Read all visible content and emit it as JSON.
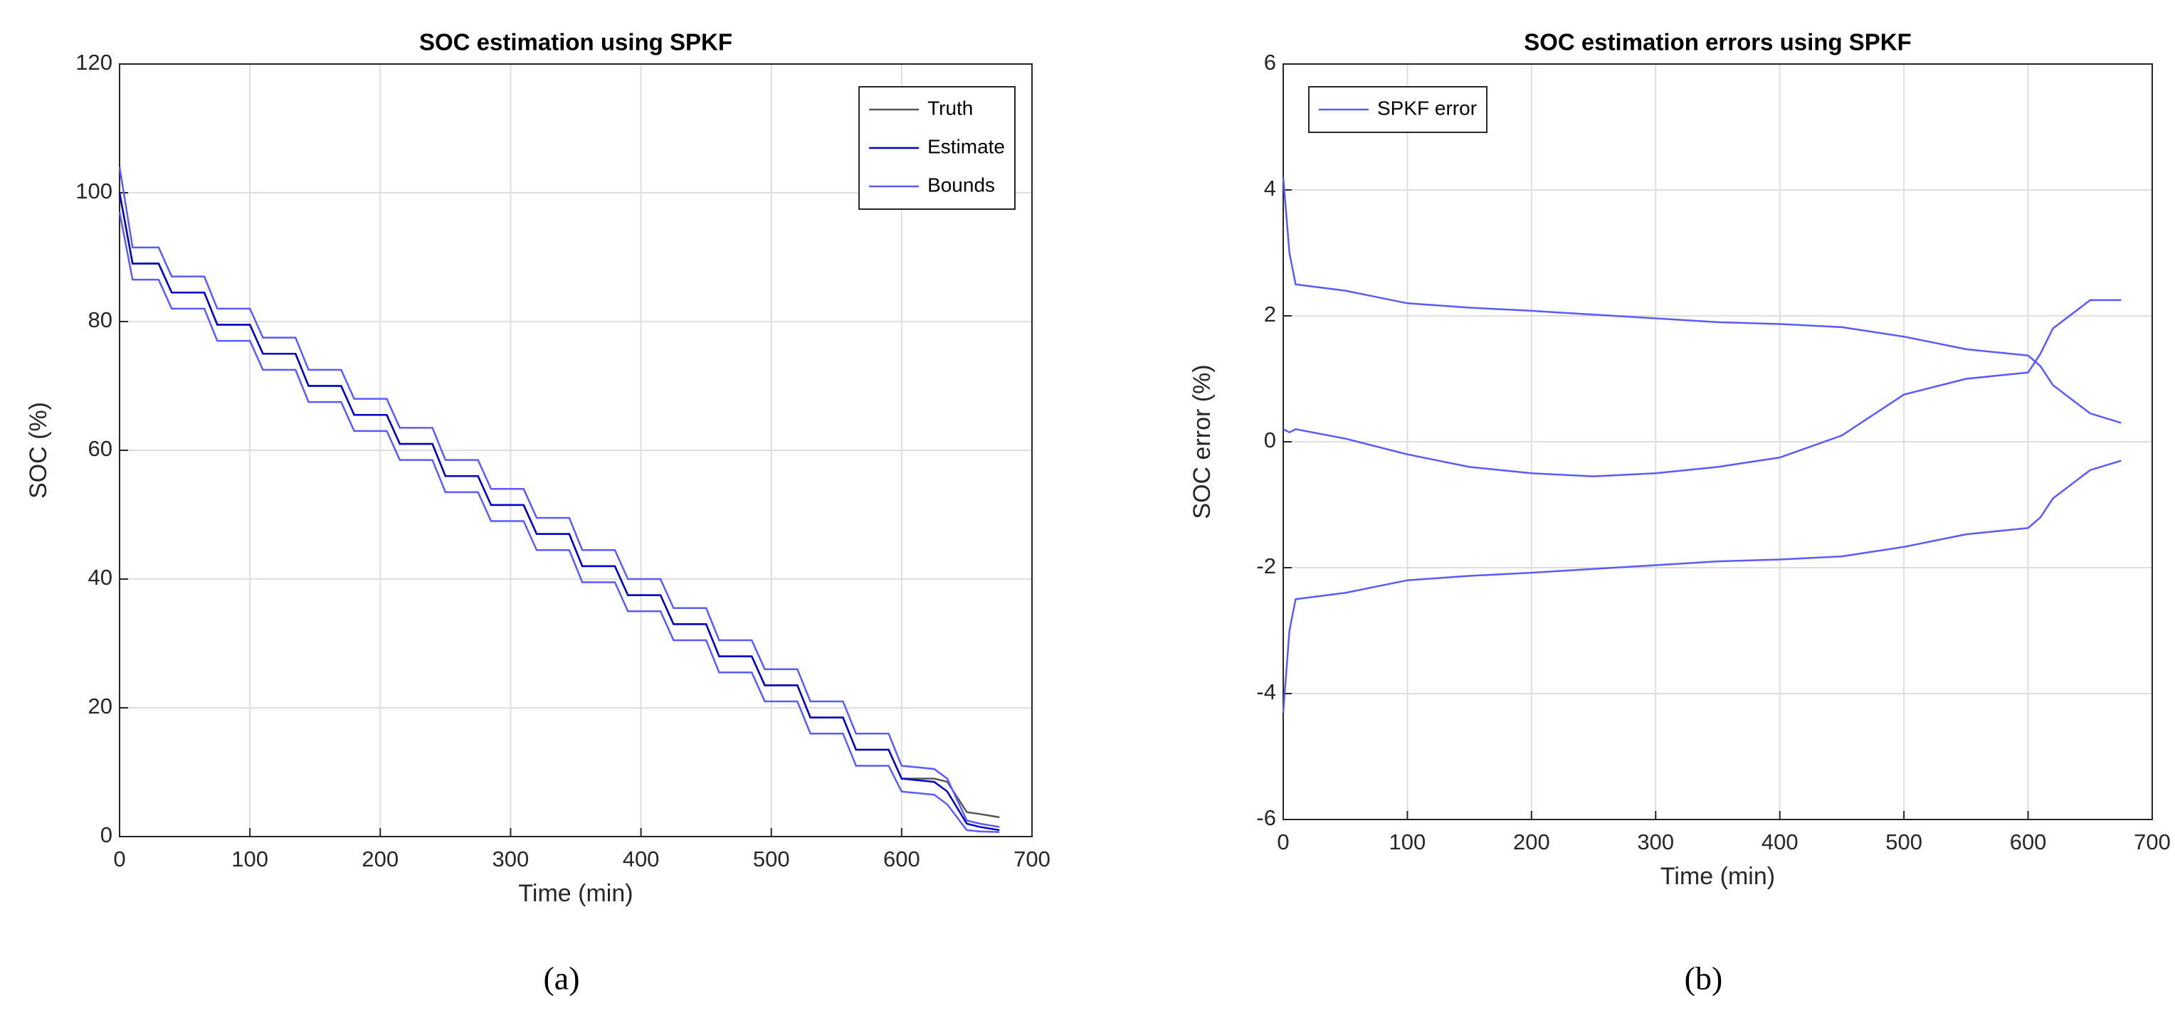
{
  "chart_data": [
    {
      "type": "line",
      "title": "SOC estimation using SPKF",
      "xlabel": "Time (min)",
      "ylabel": "SOC (%)",
      "caption": "(a)",
      "x": [
        0,
        10,
        30,
        40,
        65,
        75,
        100,
        110,
        135,
        145,
        170,
        180,
        205,
        215,
        240,
        250,
        275,
        285,
        310,
        320,
        345,
        355,
        380,
        390,
        415,
        425,
        450,
        460,
        485,
        495,
        520,
        530,
        555,
        565,
        590,
        600,
        625,
        635,
        650,
        660,
        675
      ],
      "series": [
        {
          "name": "Truth",
          "color": "#555555",
          "values": [
            100,
            89,
            89,
            84.5,
            84.5,
            79.5,
            79.5,
            75,
            75,
            70,
            70,
            65.5,
            65.5,
            61,
            61,
            56,
            56,
            51.5,
            51.5,
            47,
            47,
            42,
            42,
            37.5,
            37.5,
            33,
            33,
            28,
            28,
            23.5,
            23.5,
            18.5,
            18.5,
            13.5,
            13.5,
            9,
            9,
            8.5,
            3.8,
            3.5,
            3
          ]
        },
        {
          "name": "Estimate",
          "color": "#0000cc",
          "values": [
            100,
            89,
            89,
            84.5,
            84.5,
            79.5,
            79.5,
            75,
            75,
            70,
            70,
            65.5,
            65.5,
            61,
            61,
            56,
            56,
            51.5,
            51.5,
            47,
            47,
            42,
            42,
            37.5,
            37.5,
            33,
            33,
            28,
            28,
            23.5,
            23.5,
            18.5,
            18.5,
            13.5,
            13.5,
            9,
            8.5,
            7,
            2,
            1.5,
            1
          ]
        },
        {
          "name": "Bounds",
          "color": "#5a5aff",
          "values": [
            104,
            91.5,
            91.5,
            87,
            87,
            82,
            82,
            77.5,
            77.5,
            72.5,
            72.5,
            68,
            68,
            63.5,
            63.5,
            58.5,
            58.5,
            54,
            54,
            49.5,
            49.5,
            44.5,
            44.5,
            40,
            40,
            35.5,
            35.5,
            30.5,
            30.5,
            26,
            26,
            21,
            21,
            16,
            16,
            11,
            10.5,
            9,
            2.5,
            2,
            1.5
          ]
        },
        {
          "color": "#5a5aff",
          "values": [
            97,
            86.5,
            86.5,
            82,
            82,
            77,
            77,
            72.5,
            72.5,
            67.5,
            67.5,
            63,
            63,
            58.5,
            58.5,
            53.5,
            53.5,
            49,
            49,
            44.5,
            44.5,
            39.5,
            39.5,
            35,
            35,
            30.5,
            30.5,
            25.5,
            25.5,
            21,
            21,
            16,
            16,
            11,
            11,
            7,
            6.5,
            5,
            1,
            0.8,
            0.7
          ]
        }
      ],
      "xlim": [
        0,
        700
      ],
      "xticks": [
        0,
        100,
        200,
        300,
        400,
        500,
        600,
        700
      ],
      "ylim": [
        0,
        120
      ],
      "yticks": [
        0,
        20,
        40,
        60,
        80,
        100,
        120
      ],
      "grid": true,
      "legend": "upper right"
    },
    {
      "type": "line",
      "title": "SOC estimation errors using SPKF",
      "xlabel": "Time (min)",
      "ylabel": "SOC error (%)",
      "caption": "(b)",
      "x": [
        0,
        5,
        10,
        50,
        100,
        150,
        200,
        250,
        300,
        350,
        400,
        450,
        500,
        550,
        600,
        610,
        620,
        650,
        675
      ],
      "series": [
        {
          "name": "SPKF error",
          "color": "#5a5aff",
          "values": [
            0.2,
            0.15,
            0.2,
            0.05,
            -0.2,
            -0.4,
            -0.5,
            -0.55,
            -0.5,
            -0.4,
            -0.25,
            0.1,
            0.75,
            1.0,
            1.1,
            1.4,
            1.8,
            2.25,
            2.25
          ]
        },
        {
          "color": "#5a5aff",
          "values": [
            4.2,
            3,
            2.5,
            2.4,
            2.2,
            2.13,
            2.08,
            2.02,
            1.96,
            1.9,
            1.87,
            1.82,
            1.67,
            1.47,
            1.37,
            1.2,
            0.9,
            0.45,
            0.3
          ]
        },
        {
          "color": "#5a5aff",
          "values": [
            -4.3,
            -3,
            -2.5,
            -2.4,
            -2.2,
            -2.13,
            -2.08,
            -2.02,
            -1.96,
            -1.9,
            -1.87,
            -1.82,
            -1.67,
            -1.47,
            -1.37,
            -1.2,
            -0.9,
            -0.45,
            -0.3
          ]
        }
      ],
      "xlim": [
        0,
        700
      ],
      "xticks": [
        0,
        100,
        200,
        300,
        400,
        500,
        600,
        700
      ],
      "ylim": [
        -6,
        6
      ],
      "yticks": [
        -6,
        -4,
        -2,
        0,
        2,
        4,
        6
      ],
      "grid": true,
      "legend": "upper left"
    }
  ]
}
